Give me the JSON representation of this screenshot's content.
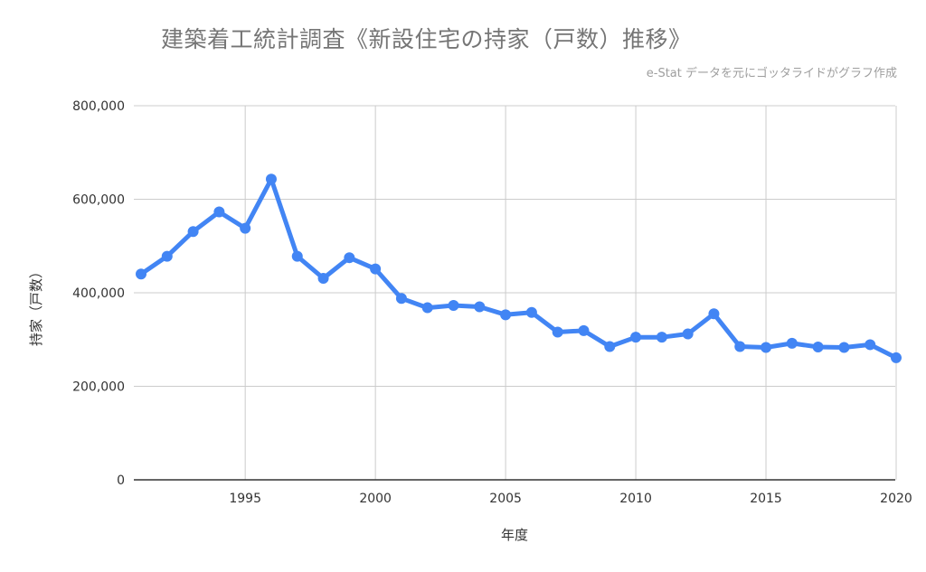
{
  "header": {
    "title": "建築着工統計調査《新設住宅の持家（戸数）推移》",
    "subtitle": "e-Stat データを元にゴッタライドがグラフ作成"
  },
  "chart_data": {
    "type": "line",
    "title": "建築着工統計調査《新設住宅の持家（戸数）推移》",
    "subtitle": "e-Stat データを元にゴッタライドがグラフ作成",
    "xlabel": "年度",
    "ylabel": "持家（戸数）",
    "xlim": [
      1991,
      2020
    ],
    "ylim": [
      0,
      800000
    ],
    "x_ticks": [
      1995,
      2000,
      2005,
      2010,
      2015,
      2020
    ],
    "y_ticks": [
      0,
      200000,
      400000,
      600000,
      800000
    ],
    "y_tick_labels": [
      "0",
      "200,000",
      "400,000",
      "600,000",
      "800,000"
    ],
    "grid": true,
    "legend": "none",
    "color": "#4285f4",
    "x": [
      1991,
      1992,
      1993,
      1994,
      1995,
      1996,
      1997,
      1998,
      1999,
      2000,
      2001,
      2002,
      2003,
      2004,
      2005,
      2006,
      2007,
      2008,
      2009,
      2010,
      2011,
      2012,
      2013,
      2014,
      2015,
      2016,
      2017,
      2018,
      2019,
      2020
    ],
    "values": [
      440000,
      478000,
      531000,
      573000,
      538000,
      643000,
      478000,
      431000,
      475000,
      451000,
      388000,
      368000,
      373000,
      370000,
      353000,
      358000,
      316000,
      319000,
      285000,
      305000,
      305000,
      312000,
      355000,
      285000,
      283000,
      292000,
      284000,
      283000,
      289000,
      261000
    ]
  }
}
